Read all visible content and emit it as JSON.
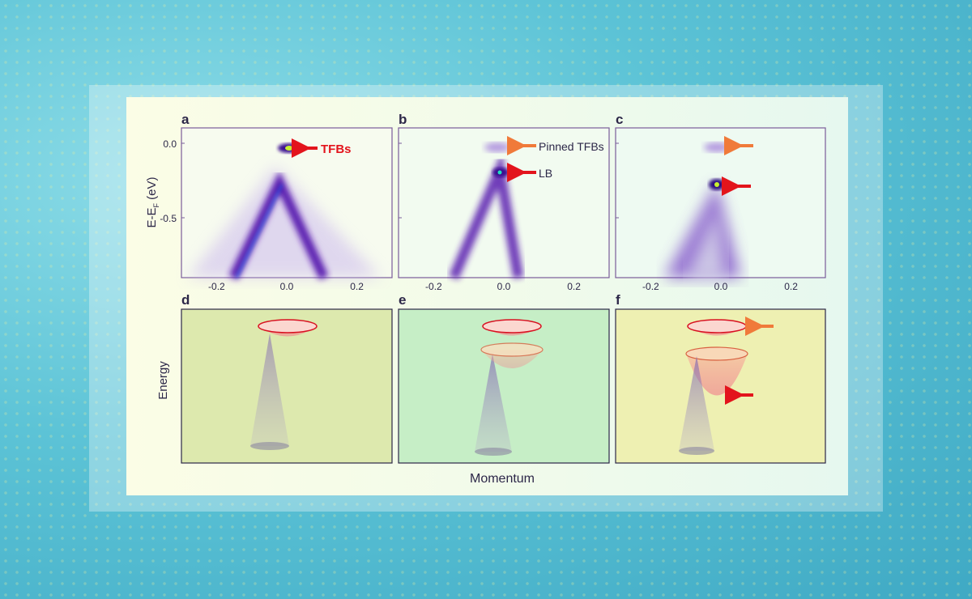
{
  "panels_top": [
    {
      "letter": "a",
      "annotations": [
        {
          "text": "TFBs",
          "color": "#e3141c"
        }
      ]
    },
    {
      "letter": "b",
      "annotations": [
        {
          "text": "Pinned TFBs",
          "color": "#f07a3a"
        },
        {
          "text": "LB",
          "color": "#e3141c"
        }
      ]
    },
    {
      "letter": "c",
      "annotations": [
        {
          "text": "",
          "color": "#f07a3a"
        },
        {
          "text": "",
          "color": "#e3141c"
        }
      ]
    }
  ],
  "panels_bottom": [
    {
      "letter": "d"
    },
    {
      "letter": "e"
    },
    {
      "letter": "f"
    }
  ],
  "y_axis": {
    "label": "E-E",
    "label_sub": "F",
    "label_unit": " (eV)",
    "ticks": [
      "0.0",
      "-0.5"
    ]
  },
  "x_ticks": [
    "-0.2",
    "0.0",
    "0.2"
  ],
  "bottom_y_label": "Energy",
  "bottom_x_label": "Momentum",
  "colors": {
    "band": "#5a1fb0",
    "hotspot": "#16e0c0",
    "arrow_red": "#e3141c",
    "arrow_orange": "#f07a3a",
    "panel_d": "#dde9ae",
    "panel_e": "#c6eec6",
    "panel_f": "#eef0b2"
  }
}
